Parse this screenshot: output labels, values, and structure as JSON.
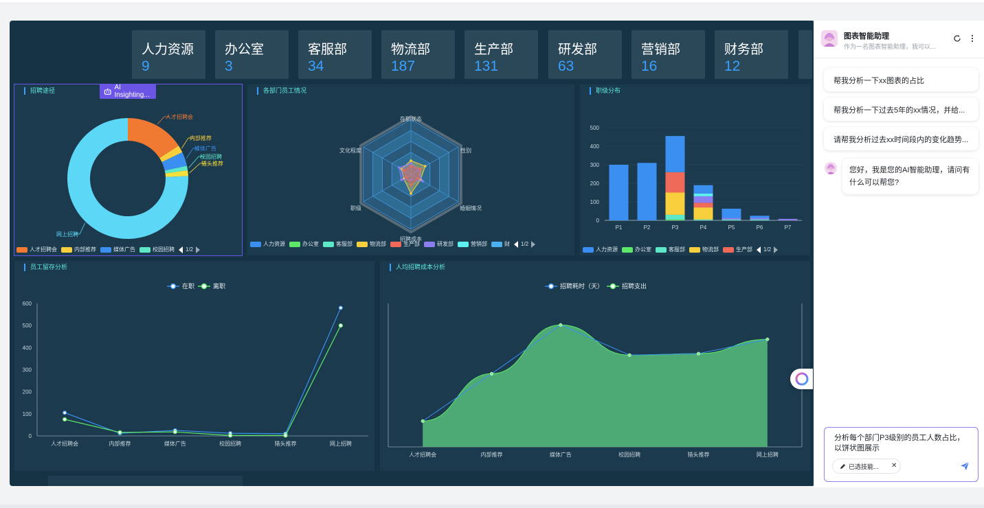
{
  "colors": {
    "accent_blue": "#3aa0ff",
    "panel_title": "#5fe8e0",
    "dashboard_bg": "#163346",
    "card_bg": "#2b4859",
    "assistant_accent": "#6b55e6"
  },
  "departments": [
    {
      "name": "人力资源",
      "count": "9"
    },
    {
      "name": "办公室",
      "count": "3"
    },
    {
      "name": "客服部",
      "count": "34"
    },
    {
      "name": "物流部",
      "count": "187"
    },
    {
      "name": "生产部",
      "count": "131"
    },
    {
      "name": "研发部",
      "count": "63"
    },
    {
      "name": "营销部",
      "count": "16"
    },
    {
      "name": "财务部",
      "count": "12"
    }
  ],
  "ai_insight_label": "AI Insighting...",
  "panels": {
    "recruit_channel": {
      "title": "招聘途径",
      "legend": [
        "人才招聘会",
        "内部推荐",
        "媒体广告",
        "校园招聘"
      ],
      "pager": "1/2"
    },
    "dept_staff": {
      "title": "各部门员工情况",
      "legend": [
        "人力资源",
        "办公室",
        "客服部",
        "物流部",
        "生产部",
        "研发部",
        "营销部",
        "财"
      ],
      "pager": "1/2"
    },
    "rank_dist": {
      "title": "职级分布",
      "legend": [
        "人力资源",
        "办公室",
        "客服部",
        "物流部",
        "生产部"
      ],
      "pager": "1/2"
    },
    "retention": {
      "title": "员工留存分析"
    },
    "cost": {
      "title": "人均招聘成本分析"
    }
  },
  "chart_data": [
    {
      "type": "pie",
      "donut": true,
      "title": "招聘途径",
      "labels": [
        "人才招聘会",
        "内部推荐",
        "媒体广告",
        "校园招聘",
        "猎头推荐",
        "网上招聘"
      ],
      "values": [
        105,
        13,
        25,
        8,
        10,
        500
      ],
      "colors": [
        "#f07a32",
        "#f8cf3c",
        "#3a8ff0",
        "#5ee8c8",
        "#f8e03c",
        "#5cd8f6"
      ]
    },
    {
      "type": "radar",
      "title": "各部门员工情况",
      "indicators": [
        "在职状态",
        "性别",
        "婚姻情况",
        "招聘成本",
        "职级",
        "文化程度"
      ],
      "series_colors": [
        "#3a8ff0",
        "#5ee86a",
        "#5ee8c8",
        "#f8cf3c",
        "#f06a5a",
        "#8a7ef0",
        "#5cf0f0",
        "#4ab0f0"
      ],
      "max": 10
    },
    {
      "type": "bar",
      "stacked": true,
      "title": "职级分布",
      "categories": [
        "P1",
        "P2",
        "P3",
        "P4",
        "P5",
        "P6",
        "P7"
      ],
      "ylim": [
        0,
        500
      ],
      "yticks": [
        0,
        100,
        200,
        300,
        400,
        500
      ],
      "series": [
        {
          "name": "人力资源",
          "color": "#3a8ff0",
          "values": [
            300,
            310,
            0,
            0,
            0,
            0,
            0
          ]
        },
        {
          "name": "办公室",
          "color": "#5ee86a",
          "values": [
            0,
            0,
            5,
            0,
            0,
            0,
            0
          ]
        },
        {
          "name": "客服部",
          "color": "#5ee8c8",
          "values": [
            0,
            0,
            25,
            5,
            5,
            5,
            0
          ]
        },
        {
          "name": "物流部",
          "color": "#f8cf3c",
          "values": [
            0,
            0,
            120,
            65,
            0,
            0,
            0
          ]
        },
        {
          "name": "生产部",
          "color": "#f06a5a",
          "values": [
            0,
            0,
            110,
            25,
            0,
            0,
            0
          ]
        },
        {
          "name": "研发部",
          "color": "#8a7ef0",
          "values": [
            0,
            0,
            0,
            35,
            8,
            8,
            8
          ]
        },
        {
          "name": "营销部",
          "color": "#5cf0f0",
          "values": [
            0,
            0,
            0,
            15,
            0,
            0,
            0
          ]
        },
        {
          "name": "财务部",
          "color": "#3a8ff0",
          "values": [
            0,
            0,
            195,
            45,
            50,
            12,
            0
          ]
        }
      ]
    },
    {
      "type": "line",
      "title": "员工留存分析",
      "categories": [
        "人才招聘会",
        "内部推荐",
        "媒体广告",
        "校园招聘",
        "猎头推荐",
        "网上招聘"
      ],
      "ylim": [
        0,
        600
      ],
      "yticks": [
        0,
        100,
        200,
        300,
        400,
        500,
        600
      ],
      "series": [
        {
          "name": "在职",
          "color": "#3a8ff0",
          "values": [
            105,
            12,
            25,
            12,
            10,
            580
          ]
        },
        {
          "name": "离职",
          "color": "#5ee86a",
          "values": [
            75,
            16,
            18,
            2,
            2,
            500
          ]
        }
      ]
    },
    {
      "type": "area",
      "title": "人均招聘成本分析",
      "categories": [
        "人才招聘会",
        "内部推荐",
        "媒体广告",
        "校园招聘",
        "猎头推荐",
        "网上招聘"
      ],
      "ylim": [
        0,
        100
      ],
      "series": [
        {
          "name": "招聘耗时（天）",
          "color": "#3a8ff0",
          "values": [
            18,
            51,
            85,
            64,
            65,
            75
          ],
          "smooth": false
        },
        {
          "name": "招聘支出",
          "color": "#5ee86a",
          "values": [
            18,
            51,
            85,
            64,
            65,
            75
          ],
          "smooth": true,
          "fill": "#4daa74"
        }
      ]
    }
  ],
  "assistant": {
    "title": "图表智能助理",
    "subtitle": "作为一名图表智能助理，我可以...",
    "suggestions": [
      "帮我分析一下xx图表的占比",
      "帮我分析一下过去5年的xx情况，并给...",
      "请帮我分析过去xx时间段内的变化趋势..."
    ],
    "greeting": "您好，我是您的AI智能助理，请问有什么可以帮您?",
    "input_value": "分析每个部门P3级别的员工人数占比，以饼状图展示",
    "skill_chip": "已选技能..."
  }
}
